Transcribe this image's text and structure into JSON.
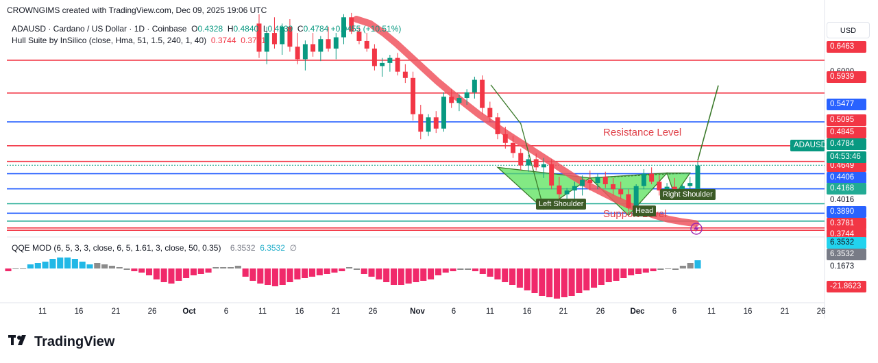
{
  "header": {
    "credit": "CROWNGIMS created with TradingView.com, Dec 09, 2025 19:06 UTC"
  },
  "legend": {
    "symbol_line": "ADAUSD · Cardano / US Dollar · 1D · Coinbase",
    "o_label": "O",
    "o_val": "0.4328",
    "h_label": "H",
    "h_val": "0.4840",
    "l_label": "L",
    "l_val": "0.4239",
    "c_label": "C",
    "c_val": "0.4784",
    "change": "+0.0455 (+10.51%)",
    "hull_line": "Hull Suite by InSilico (close, Hma, 51, 1.5, 240, 1, 40)",
    "hull_v1": "0.3744",
    "hull_v2": "0.3781",
    "qqe_line": "QQE MOD (6, 5, 3, 3, close, 6, 5, 1.61, 3, close, 50, 0.35)",
    "qqe_v1": "6.3532",
    "qqe_v2": "6.3532",
    "qqe_v3": "∅"
  },
  "currency_button": "USD",
  "ticker_tag": "ADAUSD",
  "countdown": "04:53:46",
  "chart_data": {
    "type": "candlestick",
    "symbol": "ADAUSD",
    "timeframe": "1D",
    "x_ticks": [
      "11",
      "16",
      "21",
      "26",
      "Oct",
      "6",
      "11",
      "16",
      "21",
      "26",
      "Nov",
      "6",
      "11",
      "16",
      "21",
      "26",
      "Dec",
      "6",
      "11",
      "16",
      "21",
      "26"
    ],
    "x_ticks_bold": [
      "Oct",
      "Nov",
      "Dec"
    ],
    "price_axis_labels": [
      {
        "text": "0.6463",
        "color": "#f23645"
      },
      {
        "text": "0.6000",
        "color": "#131722"
      },
      {
        "text": "0.5939",
        "color": "#f23645"
      },
      {
        "text": "0.5477",
        "color": "#2962ff"
      },
      {
        "text": "0.5095",
        "color": "#f23645"
      },
      {
        "text": "0.4845",
        "color": "#f23645"
      },
      {
        "text": "0.4784",
        "color": "#089981"
      },
      {
        "text": "0.4649",
        "color": "#f23645"
      },
      {
        "text": "0.4406",
        "color": "#2962ff"
      },
      {
        "text": "0.4168",
        "color": "#22ab94"
      },
      {
        "text": "0.4016",
        "color": "#131722"
      },
      {
        "text": "0.3890",
        "color": "#2962ff"
      },
      {
        "text": "0.3781",
        "color": "#f23645"
      },
      {
        "text": "0.3744",
        "color": "#f23645"
      }
    ],
    "horizontal_levels": [
      {
        "value": 0.6463,
        "color": "#f23645"
      },
      {
        "value": 0.5939,
        "color": "#f23645"
      },
      {
        "value": 0.5477,
        "color": "#2962ff"
      },
      {
        "value": 0.5095,
        "color": "#f23645"
      },
      {
        "value": 0.4845,
        "color": "#f23645"
      },
      {
        "value": 0.4649,
        "color": "#2962ff"
      },
      {
        "value": 0.4406,
        "color": "#2962ff"
      },
      {
        "value": 0.4168,
        "color": "#22ab94"
      },
      {
        "value": 0.4016,
        "color": "#2962ff"
      },
      {
        "value": 0.389,
        "color": "#22ab94"
      },
      {
        "value": 0.3781,
        "color": "#f23645"
      },
      {
        "value": 0.3744,
        "color": "#f23645"
      }
    ],
    "price_range": [
      0.368,
      0.712
    ],
    "candles": [
      [
        0.705,
        0.72,
        0.65,
        0.66
      ],
      [
        0.66,
        0.7,
        0.64,
        0.69
      ],
      [
        0.69,
        0.715,
        0.665,
        0.672
      ],
      [
        0.672,
        0.705,
        0.655,
        0.7
      ],
      [
        0.7,
        0.712,
        0.66,
        0.668
      ],
      [
        0.668,
        0.69,
        0.64,
        0.648
      ],
      [
        0.648,
        0.678,
        0.63,
        0.672
      ],
      [
        0.672,
        0.69,
        0.652,
        0.66
      ],
      [
        0.66,
        0.685,
        0.645,
        0.68
      ],
      [
        0.68,
        0.7,
        0.66,
        0.665
      ],
      [
        0.665,
        0.69,
        0.648,
        0.683
      ],
      [
        0.683,
        0.72,
        0.672,
        0.715
      ],
      [
        0.715,
        0.722,
        0.688,
        0.692
      ],
      [
        0.692,
        0.7,
        0.672,
        0.677
      ],
      [
        0.677,
        0.69,
        0.66,
        0.665
      ],
      [
        0.665,
        0.672,
        0.63,
        0.637
      ],
      [
        0.637,
        0.65,
        0.62,
        0.642
      ],
      [
        0.642,
        0.655,
        0.628,
        0.65
      ],
      [
        0.65,
        0.658,
        0.622,
        0.628
      ],
      [
        0.628,
        0.64,
        0.61,
        0.618
      ],
      [
        0.618,
        0.628,
        0.55,
        0.56
      ],
      [
        0.56,
        0.575,
        0.52,
        0.532
      ],
      [
        0.532,
        0.56,
        0.525,
        0.555
      ],
      [
        0.555,
        0.565,
        0.53,
        0.537
      ],
      [
        0.537,
        0.595,
        0.532,
        0.588
      ],
      [
        0.588,
        0.6,
        0.57,
        0.578
      ],
      [
        0.578,
        0.592,
        0.565,
        0.586
      ],
      [
        0.586,
        0.6,
        0.575,
        0.595
      ],
      [
        0.595,
        0.62,
        0.585,
        0.615
      ],
      [
        0.615,
        0.622,
        0.56,
        0.57
      ],
      [
        0.57,
        0.58,
        0.548,
        0.555
      ],
      [
        0.555,
        0.562,
        0.52,
        0.528
      ],
      [
        0.528,
        0.54,
        0.505,
        0.514
      ],
      [
        0.514,
        0.525,
        0.49,
        0.498
      ],
      [
        0.498,
        0.505,
        0.47,
        0.478
      ],
      [
        0.478,
        0.495,
        0.468,
        0.488
      ],
      [
        0.488,
        0.497,
        0.47,
        0.475
      ],
      [
        0.475,
        0.49,
        0.458,
        0.48
      ],
      [
        0.48,
        0.488,
        0.44,
        0.446
      ],
      [
        0.446,
        0.46,
        0.425,
        0.432
      ],
      [
        0.432,
        0.442,
        0.42,
        0.438
      ],
      [
        0.438,
        0.452,
        0.425,
        0.445
      ],
      [
        0.445,
        0.462,
        0.43,
        0.455
      ],
      [
        0.455,
        0.47,
        0.438,
        0.45
      ],
      [
        0.45,
        0.465,
        0.44,
        0.46
      ],
      [
        0.46,
        0.468,
        0.442,
        0.448
      ],
      [
        0.448,
        0.458,
        0.43,
        0.44
      ],
      [
        0.44,
        0.452,
        0.425,
        0.432
      ],
      [
        0.432,
        0.44,
        0.405,
        0.41
      ],
      [
        0.41,
        0.448,
        0.405,
        0.445
      ],
      [
        0.445,
        0.472,
        0.44,
        0.465
      ],
      [
        0.465,
        0.475,
        0.448,
        0.452
      ],
      [
        0.452,
        0.462,
        0.43,
        0.438
      ],
      [
        0.438,
        0.45,
        0.428,
        0.444
      ],
      [
        0.444,
        0.458,
        0.432,
        0.436
      ],
      [
        0.436,
        0.448,
        0.425,
        0.445
      ],
      [
        0.445,
        0.46,
        0.432,
        0.45
      ],
      [
        0.432,
        0.484,
        0.424,
        0.478
      ]
    ],
    "hull_band": [
      0.712,
      0.705,
      0.69,
      0.672,
      0.652,
      0.632,
      0.612,
      0.594,
      0.577,
      0.56,
      0.545,
      0.53,
      0.516,
      0.502,
      0.488,
      0.474,
      0.46,
      0.447,
      0.436,
      0.425,
      0.415,
      0.406,
      0.398,
      0.392,
      0.388,
      0.385
    ],
    "qqe": {
      "range": [
        -25,
        10
      ],
      "values": [
        -2,
        0,
        0,
        3,
        4,
        5,
        7,
        8,
        8,
        7,
        5,
        3,
        4,
        3,
        2,
        1,
        -1,
        -2,
        -3,
        -5,
        -8,
        -10,
        -11,
        -9,
        -7,
        -5,
        -4,
        -3,
        1,
        1,
        1,
        2,
        -6,
        -9,
        -11,
        -12,
        -13,
        -12,
        -10,
        -8,
        -7,
        -6,
        -5,
        -4,
        -3,
        -2,
        1,
        -1,
        -4,
        -6,
        -8,
        -10,
        -12,
        -12,
        -11,
        -10,
        -9,
        -8,
        -5,
        -3,
        -2,
        -1,
        -1,
        -2,
        -4,
        -6,
        -8,
        -10,
        -12,
        -14,
        -16,
        -18,
        -20,
        -21,
        -22,
        -21,
        -20,
        -18,
        -16,
        -14,
        -12,
        -10,
        -9,
        -7,
        -5,
        -4,
        -3,
        -2,
        -1,
        0,
        -1,
        2,
        4,
        6
      ],
      "labels": [
        {
          "text": "6.3532",
          "color": "#22d3ee"
        },
        {
          "text": "6.3532",
          "color": "#787b86"
        },
        {
          "text": "0.1673",
          "color": "#131722"
        },
        {
          "text": "-21.8623",
          "color": "#f23645"
        }
      ]
    },
    "annotations": {
      "resistance": "Resistance Level",
      "support": "Support Level",
      "left_shoulder": "Left Shoulder",
      "head": "Head",
      "right_shoulder": "Right Shoulder"
    }
  },
  "brand": {
    "name": "TradingView"
  }
}
